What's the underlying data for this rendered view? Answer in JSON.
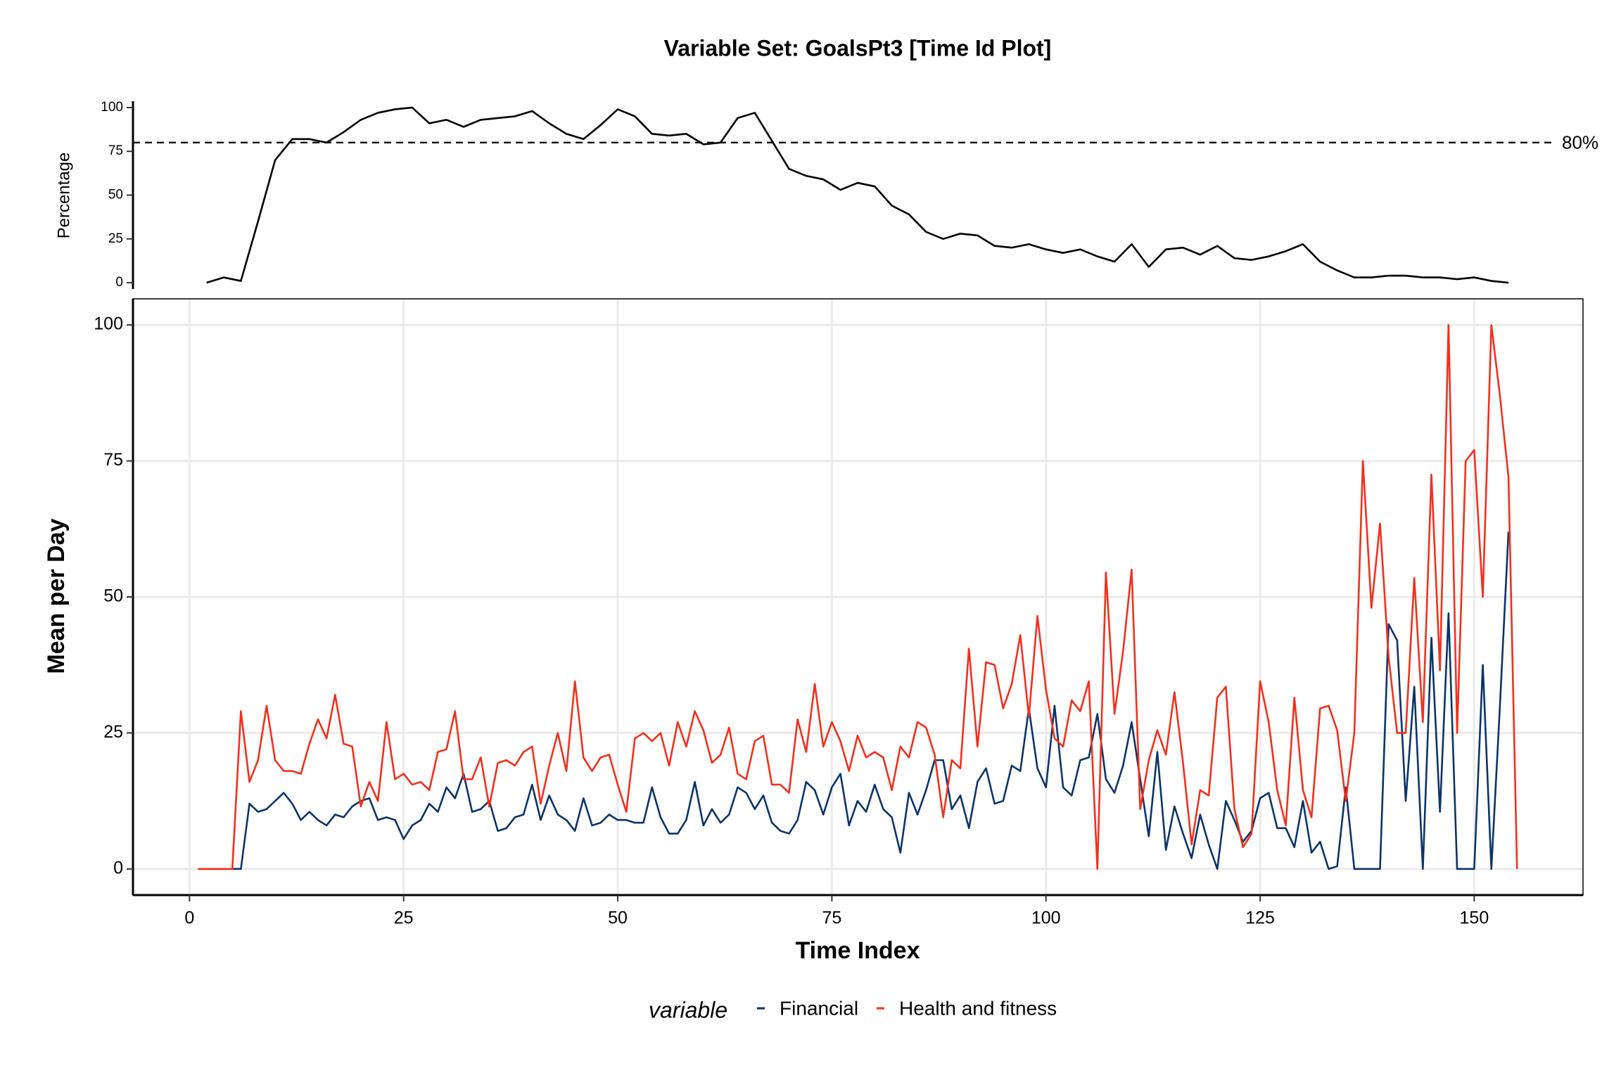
{
  "chart_data": [
    {
      "type": "line",
      "title": "Variable Set: GoalsPt3 [Time Id Plot]",
      "y_label": "Percentage",
      "color": "#000000",
      "x": [
        2,
        4,
        6,
        8,
        10,
        12,
        14,
        16,
        18,
        20,
        22,
        24,
        26,
        28,
        30,
        32,
        34,
        36,
        38,
        40,
        42,
        44,
        46,
        48,
        50,
        52,
        54,
        56,
        58,
        60,
        62,
        64,
        66,
        68,
        70,
        72,
        74,
        76,
        78,
        80,
        82,
        84,
        86,
        88,
        90,
        92,
        94,
        96,
        98,
        100,
        102,
        104,
        106,
        108,
        110,
        112,
        114,
        116,
        118,
        120,
        122,
        124,
        126,
        128,
        130,
        132,
        134,
        136,
        138,
        140,
        142,
        144,
        146,
        148,
        150,
        152,
        154
      ],
      "values": [
        0,
        3,
        1,
        35,
        70,
        82,
        82,
        80,
        86,
        93,
        97,
        99,
        100,
        91,
        93,
        89,
        93,
        94,
        95,
        98,
        91,
        85,
        82,
        90,
        99,
        95,
        85,
        84,
        85,
        79,
        80,
        94,
        97,
        81,
        65,
        61,
        59,
        53,
        57,
        55,
        44,
        39,
        29,
        25,
        28,
        27,
        21,
        20,
        22,
        19,
        17,
        19,
        15,
        12,
        22,
        9,
        19,
        20,
        16,
        21,
        14,
        13,
        15,
        18,
        22,
        12,
        7,
        3,
        3,
        4,
        4,
        3,
        3,
        2,
        3,
        1,
        0
      ],
      "xlim": [
        -6.6,
        162.7
      ],
      "ylim": [
        -3.6,
        103.6
      ],
      "yticks": [
        0,
        25,
        50,
        75,
        100
      ],
      "reference_line": {
        "value": 80,
        "label": "80%"
      },
      "grid": false
    },
    {
      "type": "line",
      "x_label": "Time Index",
      "y_label": "Mean per Day",
      "legend_title": "variable",
      "x": [
        1,
        2,
        3,
        4,
        5,
        6,
        7,
        8,
        9,
        10,
        11,
        12,
        13,
        14,
        15,
        16,
        17,
        18,
        19,
        20,
        21,
        22,
        23,
        24,
        25,
        26,
        27,
        28,
        29,
        30,
        31,
        32,
        33,
        34,
        35,
        36,
        37,
        38,
        39,
        40,
        41,
        42,
        43,
        44,
        45,
        46,
        47,
        48,
        49,
        50,
        51,
        52,
        53,
        54,
        55,
        56,
        57,
        58,
        59,
        60,
        61,
        62,
        63,
        64,
        65,
        66,
        67,
        68,
        69,
        70,
        71,
        72,
        73,
        74,
        75,
        76,
        77,
        78,
        79,
        80,
        81,
        82,
        83,
        84,
        85,
        86,
        87,
        88,
        89,
        90,
        91,
        92,
        93,
        94,
        95,
        96,
        97,
        98,
        99,
        100,
        101,
        102,
        103,
        104,
        105,
        106,
        107,
        108,
        109,
        110,
        111,
        112,
        113,
        114,
        115,
        116,
        117,
        118,
        119,
        120,
        121,
        122,
        123,
        124,
        125,
        126,
        127,
        128,
        129,
        130,
        131,
        132,
        133,
        134,
        135,
        136,
        137,
        138,
        139,
        140,
        141,
        142,
        143,
        144,
        145,
        146,
        147,
        148,
        149,
        150,
        151,
        152,
        153,
        154,
        155
      ],
      "series": [
        {
          "name": "Financial",
          "color": "#0b3468",
          "values": [
            0,
            0,
            0,
            0,
            0,
            0,
            12,
            10.5,
            11,
            12.5,
            14,
            12,
            9,
            10.5,
            9,
            8,
            10,
            9.5,
            11.5,
            12.5,
            13,
            9,
            9.5,
            9,
            5.5,
            8,
            9,
            12,
            10.5,
            15,
            13,
            17.5,
            10.5,
            11,
            12.5,
            7,
            7.5,
            9.5,
            10,
            15.5,
            9,
            13.5,
            10,
            9,
            7,
            13,
            8,
            8.5,
            10,
            9,
            9,
            8.5,
            8.5,
            15,
            9.5,
            6.5,
            6.5,
            9,
            16,
            8,
            11,
            8.5,
            10,
            15,
            14,
            11,
            13.5,
            8.5,
            7,
            6.5,
            9,
            16,
            14.5,
            10,
            15,
            17.5,
            8,
            12.5,
            10.5,
            15.5,
            11,
            9.5,
            3,
            14,
            10,
            14.5,
            20,
            20,
            11,
            13.5,
            7.5,
            16,
            18.5,
            12,
            12.5,
            19,
            18,
            29.5,
            18.5,
            15,
            30,
            15,
            13.5,
            20,
            20.5,
            28.5,
            16.5,
            14,
            19,
            27,
            16.5,
            6,
            21.5,
            3.5,
            11.5,
            6.5,
            2,
            10,
            4.5,
            0,
            12.5,
            9,
            5,
            7,
            13,
            14,
            7.5,
            7.5,
            4,
            12.5,
            3,
            5,
            0,
            0.5,
            15,
            0,
            0,
            0,
            0,
            45,
            42,
            12.5,
            33.5,
            0,
            42.5,
            10.5,
            47,
            0,
            0,
            0,
            37.5,
            0,
            30,
            62,
            null
          ]
        },
        {
          "name": "Health and fitness",
          "color": "#f2301c",
          "values": [
            0,
            0,
            0,
            0,
            0,
            29,
            16,
            20,
            30,
            20,
            18,
            18,
            17.5,
            23,
            27.5,
            24,
            32,
            23,
            22.5,
            11.5,
            16,
            12.5,
            27,
            16.5,
            17.5,
            15.5,
            16,
            14.5,
            21.5,
            22,
            29,
            16.5,
            16.5,
            20.5,
            11.5,
            19.5,
            20,
            19,
            21.5,
            22.5,
            12,
            19,
            25,
            18,
            34.5,
            20.5,
            18,
            20.5,
            21,
            15.5,
            10.5,
            24,
            25,
            23.5,
            25,
            19,
            27,
            22.5,
            29,
            25.5,
            19.5,
            21,
            26,
            17.5,
            16.5,
            23.5,
            24.5,
            15.5,
            15.5,
            14,
            27.5,
            21.5,
            34,
            22.5,
            27,
            23.5,
            18,
            24.5,
            20.5,
            21.5,
            20.5,
            14.5,
            22.5,
            20.5,
            27,
            26,
            21,
            9.5,
            20,
            18.5,
            40.5,
            22.5,
            38,
            37.5,
            29.5,
            34,
            43,
            28,
            46.5,
            33,
            24,
            22.5,
            31,
            29,
            34.5,
            0,
            54.5,
            28.5,
            40,
            55,
            11,
            20,
            25.5,
            21,
            32.5,
            19.5,
            4.5,
            14.5,
            13.5,
            31.5,
            33.5,
            11,
            4,
            6.5,
            34.5,
            27,
            14.5,
            8,
            31.5,
            14.5,
            9.5,
            29.5,
            30,
            25.5,
            12.5,
            25,
            75,
            48,
            63.5,
            39,
            25,
            25,
            53.5,
            27,
            72.5,
            36.5,
            100,
            25,
            75,
            77,
            50,
            100,
            87,
            72,
            0
          ]
        }
      ],
      "xlim": [
        -6.6,
        162.7
      ],
      "ylim": [
        -4.8,
        104.8
      ],
      "xticks": [
        0,
        25,
        50,
        75,
        100,
        125,
        150
      ],
      "yticks": [
        0,
        25,
        50,
        75,
        100
      ],
      "grid": true
    }
  ]
}
